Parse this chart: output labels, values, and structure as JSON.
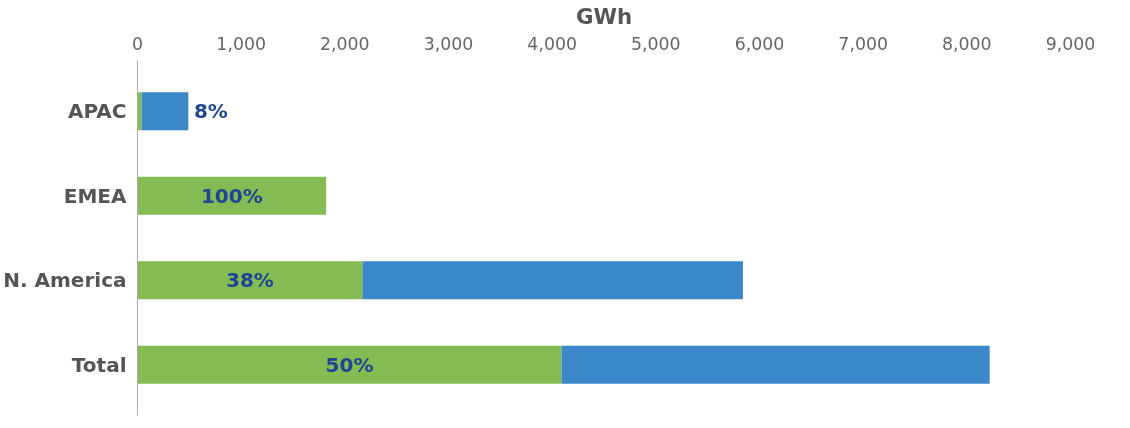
{
  "chart_data": {
    "type": "bar",
    "orientation": "horizontal",
    "stacked": true,
    "xlabel": "GWh",
    "categories": [
      "APAC",
      "EMEA",
      "N. America",
      "Total"
    ],
    "series": [
      {
        "color": "#84bb52",
        "values": [
          40,
          1820,
          2170,
          4090
        ]
      },
      {
        "color": "#3a88c8",
        "values": [
          450,
          null,
          3670,
          4130
        ]
      }
    ],
    "annotations": [
      "8%",
      "100%",
      "38%",
      "50%"
    ],
    "xlim": [
      0,
      9000
    ],
    "xticks": [
      0,
      {
        "value": 1000,
        "label": "1,000"
      },
      {
        "value": 2000,
        "label": "2,000"
      },
      {
        "value": 3000,
        "label": "3,000"
      },
      {
        "value": 4000,
        "label": "4,000"
      },
      {
        "value": 5000,
        "label": "5,000"
      },
      {
        "value": 6000,
        "label": "6,000"
      },
      {
        "value": 7000,
        "label": "7,000"
      },
      {
        "value": 8000,
        "label": "8,000"
      },
      {
        "value": 9000,
        "label": "9,000"
      }
    ],
    "grid": false
  }
}
